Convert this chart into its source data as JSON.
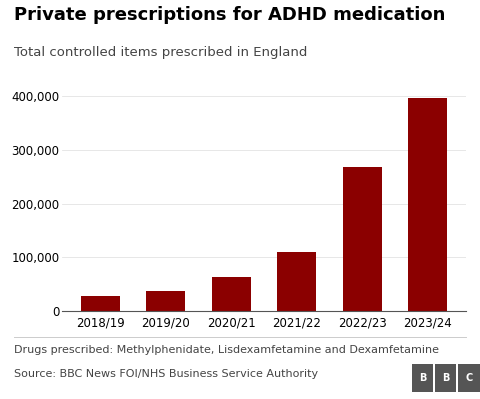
{
  "categories": [
    "2018/19",
    "2019/20",
    "2020/21",
    "2021/22",
    "2022/23",
    "2023/24"
  ],
  "values": [
    28000,
    38000,
    63000,
    110000,
    268000,
    397000
  ],
  "bar_color": "#8B0000",
  "title": "Private prescriptions for ADHD medication",
  "subtitle": "Total controlled items prescribed in England",
  "footnote1": "Drugs prescribed: Methylphenidate, Lisdexamfetamine and Dexamfetamine",
  "footnote2": "Source: BBC News FOI/NHS Business Service Authority",
  "ylim": [
    0,
    430000
  ],
  "yticks": [
    0,
    100000,
    200000,
    300000,
    400000
  ],
  "bg_color": "#ffffff",
  "title_fontsize": 13,
  "subtitle_fontsize": 9.5,
  "footnote_fontsize": 8,
  "tick_fontsize": 8.5
}
